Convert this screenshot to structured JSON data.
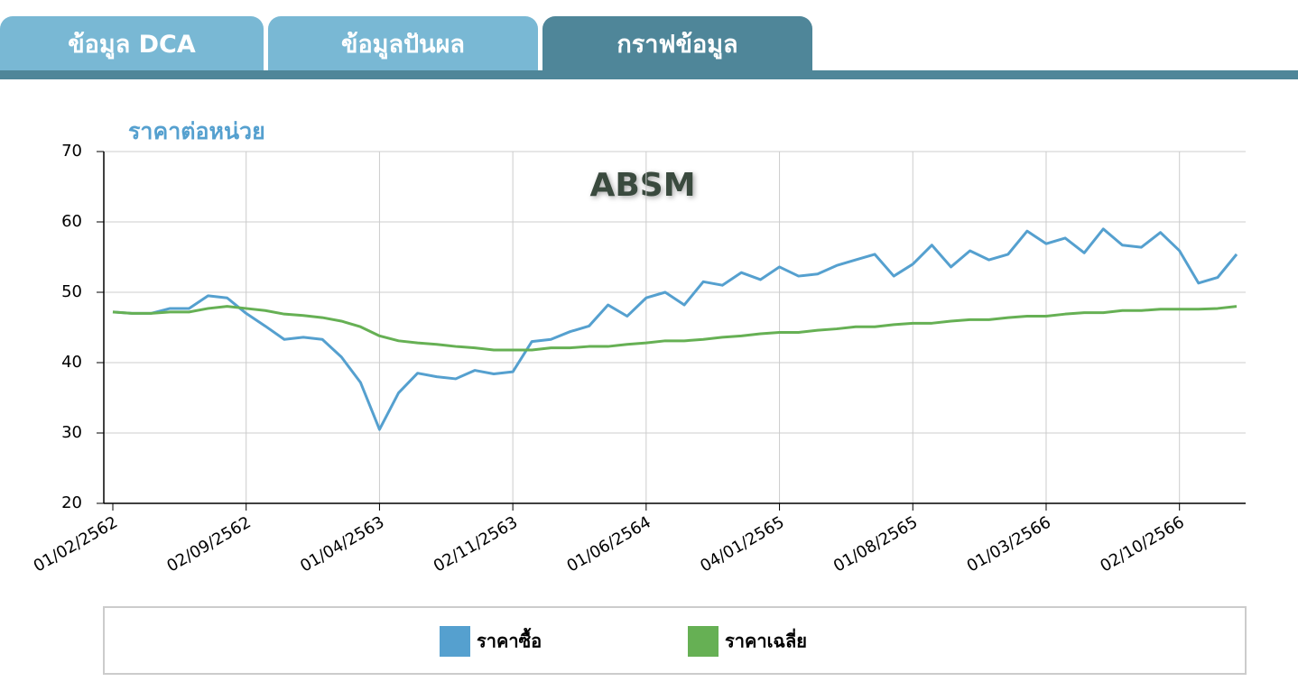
{
  "tabs": [
    "ข้อมูล DCA",
    "ข้อมูลปันผล",
    "กราฟข้อมูล"
  ],
  "chart_data": {
    "type": "line",
    "title": "ABSM",
    "y_label": "ราคาต่อหน่วย",
    "categories": [
      "01/02/2562",
      null,
      null,
      null,
      null,
      null,
      null,
      "02/09/2562",
      null,
      null,
      null,
      null,
      null,
      null,
      "01/04/2563",
      null,
      null,
      null,
      null,
      null,
      null,
      "02/11/2563",
      null,
      null,
      null,
      null,
      null,
      null,
      "01/06/2564",
      null,
      null,
      null,
      null,
      null,
      null,
      "04/01/2565",
      null,
      null,
      null,
      null,
      null,
      null,
      "01/08/2565",
      null,
      null,
      null,
      null,
      null,
      null,
      "01/03/2566",
      null,
      null,
      null,
      null,
      null,
      null,
      "02/10/2566",
      null,
      null,
      null
    ],
    "series": [
      {
        "name": "ราคาซื้อ",
        "color": "#55a0cf",
        "values": [
          47.2,
          47.0,
          47.0,
          47.7,
          47.7,
          49.5,
          49.2,
          47.0,
          45.2,
          43.3,
          43.6,
          43.3,
          40.8,
          37.2,
          30.5,
          35.7,
          38.5,
          38.0,
          37.7,
          38.9,
          38.4,
          38.7,
          43.0,
          43.3,
          44.4,
          45.2,
          48.2,
          46.6,
          49.2,
          50.0,
          48.2,
          51.5,
          51.0,
          52.8,
          51.8,
          53.6,
          52.3,
          52.6,
          53.8,
          54.6,
          55.4,
          52.3,
          54.0,
          56.7,
          53.6,
          55.9,
          54.6,
          55.4,
          58.7,
          56.9,
          57.7,
          55.6,
          59.0,
          56.7,
          56.4,
          58.5,
          55.9,
          51.3,
          52.1,
          55.4
        ]
      },
      {
        "name": "ราคาเฉลี่ย",
        "color": "#66b054",
        "values": [
          47.2,
          47.0,
          47.0,
          47.2,
          47.2,
          47.7,
          48.0,
          47.7,
          47.4,
          46.9,
          46.7,
          46.4,
          45.9,
          45.1,
          43.8,
          43.1,
          42.8,
          42.6,
          42.3,
          42.1,
          41.8,
          41.8,
          41.8,
          42.1,
          42.1,
          42.3,
          42.3,
          42.6,
          42.8,
          43.1,
          43.1,
          43.3,
          43.6,
          43.8,
          44.1,
          44.3,
          44.3,
          44.6,
          44.8,
          45.1,
          45.1,
          45.4,
          45.6,
          45.6,
          45.9,
          46.1,
          46.1,
          46.4,
          46.6,
          46.6,
          46.9,
          47.1,
          47.1,
          47.4,
          47.4,
          47.6,
          47.6,
          47.6,
          47.7,
          48.0
        ]
      }
    ],
    "ylim": [
      20,
      70
    ],
    "yticks": [
      20,
      30,
      40,
      50,
      60,
      70
    ],
    "grid": true
  }
}
